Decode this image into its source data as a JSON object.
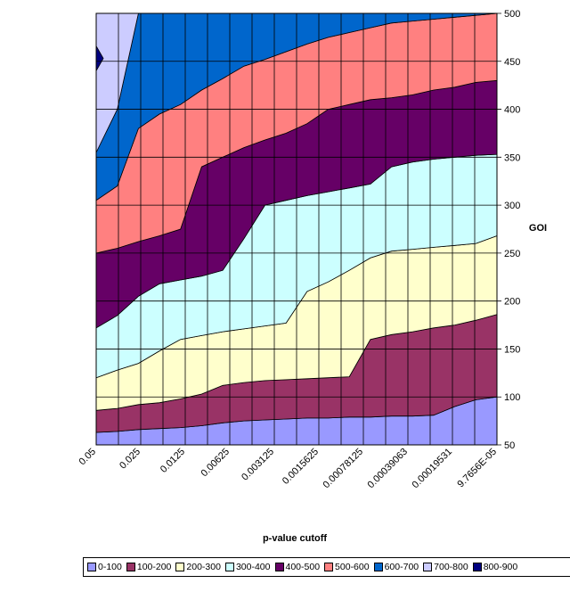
{
  "chart_data": {
    "type": "contour",
    "title": "",
    "xlabel": "p-value cutoff",
    "ylabel": "GOI",
    "x": [
      "0.05",
      "0.025",
      "0.0125",
      "0.00625",
      "0.003125",
      "0.0015625",
      "0.00078125",
      "0.00039063",
      "0.00019531",
      "9.7656E-05"
    ],
    "y_range": [
      50,
      500
    ],
    "y_ticks": [
      50,
      100,
      150,
      200,
      250,
      300,
      350,
      400,
      450,
      500
    ],
    "grid": true,
    "legend_position": "bottom",
    "bands": [
      {
        "name": "0-100",
        "color": "#9999ff",
        "lower": [
          50,
          50,
          50,
          50,
          50,
          50,
          50,
          50,
          50,
          50,
          50,
          50,
          50,
          50,
          50,
          50,
          50,
          50,
          50,
          50
        ],
        "upper": [
          63,
          64,
          66,
          67,
          68,
          70,
          73,
          75,
          76,
          77,
          78,
          78,
          79,
          79,
          80,
          80,
          81,
          90,
          97,
          100
        ]
      },
      {
        "name": "100-200",
        "color": "#993366",
        "lower": [
          63,
          64,
          66,
          67,
          68,
          70,
          73,
          75,
          76,
          77,
          78,
          78,
          79,
          79,
          80,
          80,
          81,
          90,
          97,
          100
        ],
        "upper": [
          86,
          88,
          92,
          94,
          98,
          103,
          112,
          115,
          117,
          118,
          119,
          120,
          121,
          160,
          165,
          168,
          172,
          175,
          180,
          186
        ]
      },
      {
        "name": "200-300",
        "color": "#ffffcc",
        "lower": [
          86,
          88,
          92,
          94,
          98,
          103,
          112,
          115,
          117,
          118,
          119,
          120,
          121,
          160,
          165,
          168,
          172,
          175,
          180,
          186
        ],
        "upper": [
          120,
          128,
          135,
          148,
          160,
          164,
          168,
          171,
          174,
          177,
          210,
          220,
          232,
          245,
          252,
          254,
          256,
          258,
          260,
          268
        ]
      },
      {
        "name": "300-400",
        "color": "#ccffff",
        "lower": [
          120,
          128,
          135,
          148,
          160,
          164,
          168,
          171,
          174,
          177,
          210,
          220,
          232,
          245,
          252,
          254,
          256,
          258,
          260,
          268
        ],
        "upper": [
          172,
          185,
          205,
          218,
          222,
          226,
          232,
          265,
          300,
          305,
          310,
          314,
          318,
          322,
          340,
          345,
          348,
          350,
          352,
          353
        ]
      },
      {
        "name": "400-500",
        "color": "#660066",
        "lower": [
          172,
          185,
          205,
          218,
          222,
          226,
          232,
          265,
          300,
          305,
          310,
          314,
          318,
          322,
          340,
          345,
          348,
          350,
          352,
          353
        ],
        "upper": [
          250,
          255,
          262,
          268,
          275,
          340,
          350,
          360,
          368,
          375,
          385,
          400,
          405,
          410,
          412,
          415,
          420,
          423,
          428,
          430
        ]
      },
      {
        "name": "500-600",
        "color": "#ff8080",
        "lower": [
          250,
          255,
          262,
          268,
          275,
          340,
          350,
          360,
          368,
          375,
          385,
          400,
          405,
          410,
          412,
          415,
          420,
          423,
          428,
          430
        ],
        "upper": [
          305,
          320,
          380,
          395,
          405,
          420,
          432,
          445,
          452,
          460,
          468,
          475,
          480,
          485,
          490,
          492,
          494,
          496,
          498,
          500
        ]
      },
      {
        "name": "600-700",
        "color": "#0066cc",
        "lower": [
          305,
          320,
          380,
          395,
          405,
          420,
          432,
          445,
          452,
          460,
          468,
          475,
          480,
          485,
          490,
          492,
          494,
          496,
          498,
          500
        ],
        "upper": [
          355,
          400,
          500,
          500,
          500,
          500,
          500,
          500,
          500,
          500,
          500,
          500,
          500,
          500,
          500,
          500,
          500,
          500,
          500,
          500
        ]
      },
      {
        "name": "700-800",
        "color": "#ccccff",
        "lower": [
          355,
          400,
          500,
          500,
          500,
          500,
          500,
          500,
          500,
          500,
          500,
          500,
          500,
          500,
          500,
          500,
          500,
          500,
          500,
          500
        ],
        "upper": [
          500,
          500,
          500,
          500,
          500,
          500,
          500,
          500,
          500,
          500,
          500,
          500,
          500,
          500,
          500,
          500,
          500,
          500,
          500,
          500
        ]
      }
    ],
    "blob": {
      "name": "800-900",
      "color": "#000080",
      "x": 0.0,
      "y_from": 440,
      "y_to": 466
    },
    "legend": [
      "0-100",
      "100-200",
      "200-300",
      "300-400",
      "400-500",
      "500-600",
      "600-700",
      "700-800",
      "800-900"
    ],
    "legend_colors": [
      "#9999ff",
      "#993366",
      "#ffffcc",
      "#ccffff",
      "#660066",
      "#ff8080",
      "#0066cc",
      "#ccccff",
      "#000080"
    ]
  }
}
